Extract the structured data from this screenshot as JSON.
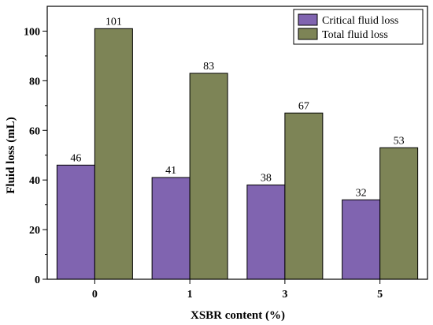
{
  "chart_data": {
    "type": "bar",
    "xlabel": "XSBR content (%)",
    "ylabel": "Fluid loss (mL)",
    "categories": [
      "0",
      "1",
      "3",
      "5"
    ],
    "series": [
      {
        "name": "Critical fluid loss",
        "values": [
          46,
          41,
          38,
          32
        ],
        "color": "#8064b0"
      },
      {
        "name": "Total fluid loss",
        "values": [
          101,
          83,
          67,
          53
        ],
        "color": "#7d8456"
      }
    ],
    "ylim": [
      0,
      110
    ],
    "yticks": [
      0,
      20,
      40,
      60,
      80,
      100
    ],
    "legend": "top-right",
    "grid": false
  }
}
